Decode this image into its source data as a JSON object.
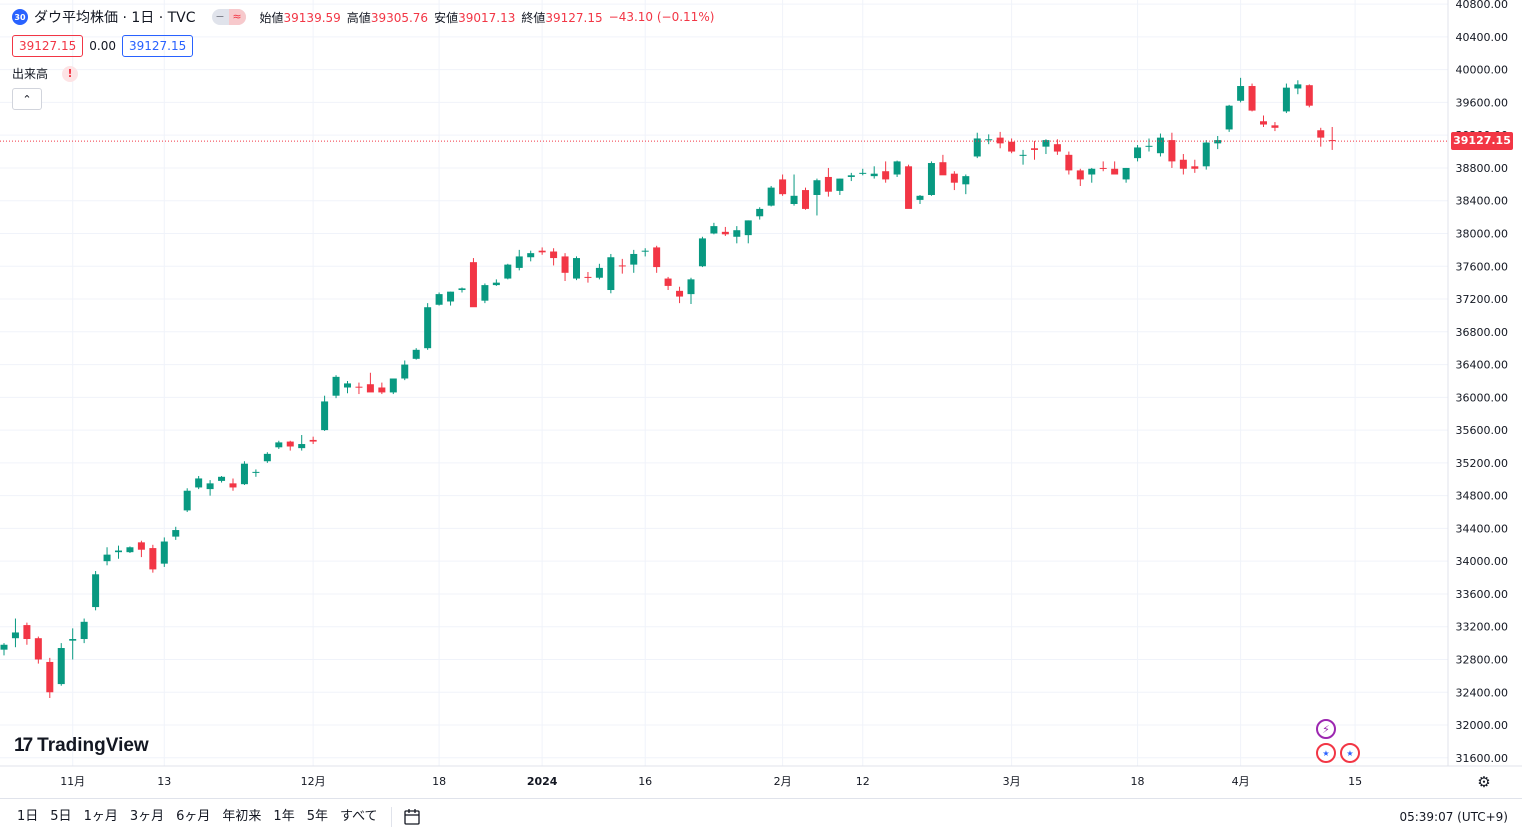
{
  "legend": {
    "badge": "30",
    "title": "ダウ平均株価 · 1日 · TVC",
    "open_label": "始値",
    "open_value": "39139.59",
    "high_label": "高値",
    "high_value": "39305.76",
    "low_label": "安値",
    "low_value": "39017.13",
    "close_label": "終値",
    "close_value": "39127.15",
    "change": "−43.10 (−0.11%)"
  },
  "price_boxes": {
    "bid": "39127.15",
    "spread": "0.00",
    "ask": "39127.15"
  },
  "volume": {
    "label": "出来高",
    "warning": "!"
  },
  "logo": {
    "mark": "17",
    "text": "TradingView"
  },
  "last_price_label": "39127.15",
  "bottom_toolbar": {
    "ranges": [
      "1日",
      "5日",
      "1ヶ月",
      "3ヶ月",
      "6ヶ月",
      "年初来",
      "1年",
      "5年",
      "すべて"
    ],
    "clock": "05:39:07 (UTC+9)"
  },
  "colors": {
    "up": "#089981",
    "down": "#f23645",
    "grid": "#f0f3fa",
    "last_line": "#f23645",
    "accent": "#2962ff"
  },
  "icons": [
    "collapse-icon",
    "calendar-icon",
    "settings-icon",
    "bolt-icon",
    "us-flag-icon"
  ],
  "chart_data": {
    "type": "candlestick",
    "y_axis_ticks": [
      31600,
      32000,
      32400,
      32800,
      33200,
      33600,
      34000,
      34400,
      34800,
      35200,
      35600,
      36000,
      36400,
      36800,
      37200,
      37600,
      38000,
      38400,
      38800,
      39200,
      39600,
      40000,
      40400,
      40800
    ],
    "ylim": [
      31500,
      40850
    ],
    "x_axis_labels": [
      {
        "text": "11月",
        "i": 6
      },
      {
        "text": "13",
        "i": 14
      },
      {
        "text": "12月",
        "i": 27
      },
      {
        "text": "18",
        "i": 38
      },
      {
        "text": "2024",
        "i": 47
      },
      {
        "text": "16",
        "i": 56
      },
      {
        "text": "2月",
        "i": 68
      },
      {
        "text": "12",
        "i": 75
      },
      {
        "text": "3月",
        "i": 88
      },
      {
        "text": "18",
        "i": 99
      },
      {
        "text": "4月",
        "i": 108
      },
      {
        "text": "15",
        "i": 118
      }
    ],
    "last_price": 39127.15,
    "candles": [
      [
        32920,
        33000,
        32850,
        32980
      ],
      [
        33060,
        33300,
        32950,
        33130
      ],
      [
        33220,
        33250,
        32980,
        33050
      ],
      [
        33060,
        33080,
        32750,
        32800
      ],
      [
        32770,
        32820,
        32330,
        32400
      ],
      [
        32500,
        33000,
        32480,
        32940
      ],
      [
        33030,
        33180,
        32800,
        33050
      ],
      [
        33050,
        33300,
        33000,
        33260
      ],
      [
        33440,
        33880,
        33400,
        33840
      ],
      [
        34000,
        34170,
        33950,
        34080
      ],
      [
        34110,
        34190,
        34030,
        34130
      ],
      [
        34110,
        34180,
        34100,
        34170
      ],
      [
        34230,
        34250,
        34050,
        34140
      ],
      [
        34160,
        34200,
        33860,
        33900
      ],
      [
        33970,
        34290,
        33930,
        34240
      ],
      [
        34300,
        34420,
        34260,
        34380
      ],
      [
        34620,
        34890,
        34600,
        34860
      ],
      [
        34900,
        35040,
        34880,
        35010
      ],
      [
        34880,
        34990,
        34800,
        34950
      ],
      [
        34980,
        35040,
        34960,
        35030
      ],
      [
        34950,
        35010,
        34860,
        34900
      ],
      [
        34940,
        35220,
        34930,
        35190
      ],
      [
        35080,
        35120,
        35030,
        35090
      ],
      [
        35220,
        35330,
        35200,
        35310
      ],
      [
        35390,
        35470,
        35370,
        35450
      ],
      [
        35460,
        35470,
        35350,
        35400
      ],
      [
        35380,
        35540,
        35350,
        35430
      ],
      [
        35480,
        35520,
        35430,
        35460
      ],
      [
        35600,
        36020,
        35590,
        35950
      ],
      [
        36020,
        36270,
        35990,
        36250
      ],
      [
        36120,
        36200,
        36050,
        36170
      ],
      [
        36130,
        36180,
        36040,
        36120
      ],
      [
        36160,
        36300,
        36070,
        36060
      ],
      [
        36120,
        36180,
        36040,
        36060
      ],
      [
        36060,
        36200,
        36040,
        36230
      ],
      [
        36230,
        36450,
        36210,
        36400
      ],
      [
        36470,
        36600,
        36460,
        36580
      ],
      [
        36600,
        37150,
        36580,
        37100
      ],
      [
        37130,
        37280,
        37120,
        37260
      ],
      [
        37170,
        37290,
        37120,
        37290
      ],
      [
        37310,
        37340,
        37280,
        37330
      ],
      [
        37650,
        37700,
        37110,
        37100
      ],
      [
        37180,
        37390,
        37150,
        37370
      ],
      [
        37370,
        37440,
        37360,
        37400
      ],
      [
        37450,
        37630,
        37440,
        37620
      ],
      [
        37580,
        37800,
        37550,
        37720
      ],
      [
        37710,
        37790,
        37660,
        37760
      ],
      [
        37790,
        37830,
        37740,
        37770
      ],
      [
        37780,
        37820,
        37610,
        37700
      ],
      [
        37720,
        37760,
        37420,
        37520
      ],
      [
        37450,
        37720,
        37430,
        37700
      ],
      [
        37470,
        37530,
        37400,
        37460
      ],
      [
        37460,
        37630,
        37440,
        37580
      ],
      [
        37310,
        37750,
        37270,
        37710
      ],
      [
        37610,
        37690,
        37510,
        37600
      ],
      [
        37620,
        37800,
        37520,
        37750
      ],
      [
        37780,
        37820,
        37720,
        37790
      ],
      [
        37830,
        37850,
        37520,
        37590
      ],
      [
        37450,
        37470,
        37310,
        37360
      ],
      [
        37300,
        37350,
        37150,
        37230
      ],
      [
        37260,
        37460,
        37140,
        37440
      ],
      [
        37600,
        37960,
        37590,
        37940
      ],
      [
        38000,
        38130,
        37990,
        38090
      ],
      [
        38020,
        38080,
        37970,
        37990
      ],
      [
        37960,
        38090,
        37880,
        38040
      ],
      [
        37980,
        38160,
        37880,
        38160
      ],
      [
        38210,
        38320,
        38170,
        38300
      ],
      [
        38340,
        38580,
        38330,
        38560
      ],
      [
        38660,
        38720,
        38460,
        38480
      ],
      [
        38360,
        38720,
        38340,
        38460
      ],
      [
        38530,
        38560,
        38290,
        38300
      ],
      [
        38470,
        38670,
        38220,
        38650
      ],
      [
        38690,
        38800,
        38450,
        38510
      ],
      [
        38520,
        38670,
        38470,
        38670
      ],
      [
        38690,
        38740,
        38640,
        38710
      ],
      [
        38740,
        38790,
        38710,
        38740
      ],
      [
        38700,
        38820,
        38670,
        38730
      ],
      [
        38760,
        38880,
        38620,
        38660
      ],
      [
        38720,
        38890,
        38690,
        38880
      ],
      [
        38820,
        38840,
        38310,
        38300
      ],
      [
        38410,
        38470,
        38360,
        38460
      ],
      [
        38470,
        38880,
        38460,
        38860
      ],
      [
        38870,
        38960,
        38750,
        38710
      ],
      [
        38730,
        38760,
        38530,
        38620
      ],
      [
        38600,
        38720,
        38480,
        38700
      ],
      [
        38940,
        39230,
        38920,
        39160
      ],
      [
        39140,
        39210,
        39090,
        39150
      ],
      [
        39170,
        39240,
        39040,
        39100
      ],
      [
        39120,
        39160,
        38980,
        39000
      ],
      [
        38950,
        39020,
        38840,
        38960
      ],
      [
        39040,
        39130,
        38900,
        39020
      ],
      [
        39060,
        39150,
        38970,
        39140
      ],
      [
        39090,
        39150,
        38960,
        39000
      ],
      [
        38960,
        39000,
        38720,
        38770
      ],
      [
        38770,
        38790,
        38580,
        38660
      ],
      [
        38720,
        38800,
        38620,
        38790
      ],
      [
        38800,
        38880,
        38760,
        38790
      ],
      [
        38790,
        38880,
        38730,
        38720
      ],
      [
        38660,
        38800,
        38620,
        38800
      ],
      [
        38920,
        39080,
        38880,
        39050
      ],
      [
        39070,
        39160,
        39000,
        39070
      ],
      [
        38980,
        39220,
        38940,
        39170
      ],
      [
        39140,
        39230,
        38800,
        38880
      ],
      [
        38900,
        38970,
        38720,
        38790
      ],
      [
        38820,
        38900,
        38740,
        38790
      ],
      [
        38820,
        39140,
        38780,
        39110
      ],
      [
        39100,
        39190,
        39030,
        39140
      ],
      [
        39270,
        39570,
        39240,
        39560
      ],
      [
        39620,
        39900,
        39600,
        39800
      ],
      [
        39800,
        39830,
        39490,
        39500
      ],
      [
        39370,
        39440,
        39300,
        39330
      ],
      [
        39320,
        39360,
        39250,
        39290
      ],
      [
        39490,
        39830,
        39470,
        39780
      ],
      [
        39770,
        39870,
        39700,
        39820
      ],
      [
        39810,
        39820,
        39540,
        39560
      ],
      [
        39260,
        39290,
        39060,
        39170
      ],
      [
        39140,
        39300,
        39020,
        39130
      ]
    ]
  }
}
